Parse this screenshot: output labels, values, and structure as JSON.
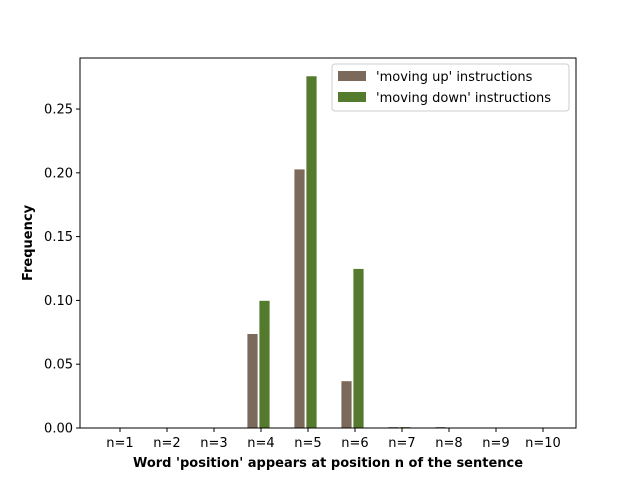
{
  "chart_data": {
    "type": "bar",
    "title": "",
    "xlabel": "Word 'position' appears at position n of the sentence",
    "ylabel": "Frequency",
    "categories": [
      "n=1",
      "n=2",
      "n=3",
      "n=4",
      "n=5",
      "n=6",
      "n=7",
      "n=8",
      "n=9",
      "n=10"
    ],
    "series": [
      {
        "name": "'moving up' instructions",
        "color": "#7b6a5c",
        "values": [
          0,
          0,
          0,
          0.074,
          0.203,
          0.037,
          0.001,
          0.001,
          0,
          0
        ]
      },
      {
        "name": "'moving down' instructions",
        "color": "#547a2e",
        "values": [
          0,
          0,
          0,
          0.1,
          0.276,
          0.125,
          0.001,
          0,
          0,
          0
        ]
      }
    ],
    "yticks": [
      "0.00",
      "0.05",
      "0.10",
      "0.15",
      "0.20",
      "0.25"
    ],
    "ylim": [
      0,
      0.29
    ],
    "grid": false,
    "legend_position": "top-right"
  }
}
